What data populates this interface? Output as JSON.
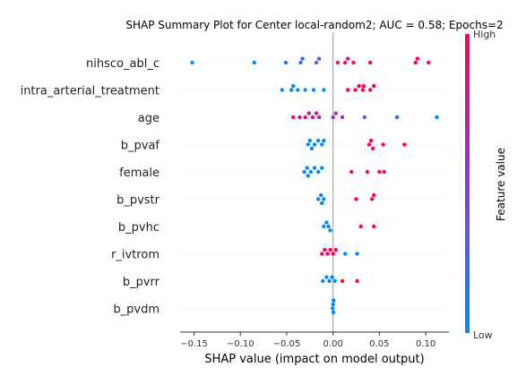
{
  "chart_data": {
    "type": "scatter",
    "title": "SHAP Summary Plot for Center local-random2; AUC = 0.58; Epochs=2",
    "xlabel": "SHAP value (impact on model output)",
    "xlim": [
      -0.165,
      0.125
    ],
    "x_ticks": [
      -0.15,
      -0.1,
      -0.05,
      0.0,
      0.05,
      0.1
    ],
    "x_tick_labels": [
      "−0.15",
      "−0.10",
      "−0.05",
      "0.00",
      "0.05",
      "0.10"
    ],
    "colorbar": {
      "label": "Feature value",
      "high_label": "High",
      "low_label": "Low",
      "high_color": "#ff0052",
      "low_color": "#008bfb"
    },
    "features": [
      {
        "name": "nihsco_abl_c",
        "points": [
          {
            "x": -0.152,
            "v": 0.0
          },
          {
            "x": -0.085,
            "v": 0.0
          },
          {
            "x": -0.051,
            "v": 0.05
          },
          {
            "x": -0.035,
            "v": 0.15
          },
          {
            "x": -0.033,
            "v": 0.2
          },
          {
            "x": -0.018,
            "v": 0.35
          },
          {
            "x": -0.015,
            "v": 0.4
          },
          {
            "x": 0.005,
            "v": 0.85
          },
          {
            "x": 0.013,
            "v": 0.9
          },
          {
            "x": 0.016,
            "v": 0.85
          },
          {
            "x": 0.022,
            "v": 0.95
          },
          {
            "x": 0.04,
            "v": 0.95
          },
          {
            "x": 0.089,
            "v": 1.0
          },
          {
            "x": 0.091,
            "v": 1.0
          },
          {
            "x": 0.103,
            "v": 1.0
          }
        ]
      },
      {
        "name": "intra_arterial_treatment",
        "points": [
          {
            "x": -0.055,
            "v": 0.0
          },
          {
            "x": -0.045,
            "v": 0.0
          },
          {
            "x": -0.043,
            "v": 0.0
          },
          {
            "x": -0.038,
            "v": 0.0
          },
          {
            "x": -0.03,
            "v": 0.0
          },
          {
            "x": -0.021,
            "v": 0.0
          },
          {
            "x": -0.01,
            "v": 0.0
          },
          {
            "x": 0.016,
            "v": 1.0
          },
          {
            "x": 0.024,
            "v": 1.0
          },
          {
            "x": 0.028,
            "v": 1.0
          },
          {
            "x": 0.032,
            "v": 1.0
          },
          {
            "x": 0.033,
            "v": 1.0
          },
          {
            "x": 0.04,
            "v": 1.0
          },
          {
            "x": 0.044,
            "v": 1.0
          }
        ]
      },
      {
        "name": "age",
        "points": [
          {
            "x": -0.043,
            "v": 0.9
          },
          {
            "x": -0.036,
            "v": 0.85
          },
          {
            "x": -0.03,
            "v": 0.9
          },
          {
            "x": -0.026,
            "v": 0.8
          },
          {
            "x": -0.022,
            "v": 0.85
          },
          {
            "x": -0.018,
            "v": 0.75
          },
          {
            "x": -0.015,
            "v": 0.8
          },
          {
            "x": 0.0,
            "v": 0.6
          },
          {
            "x": 0.003,
            "v": 0.55
          },
          {
            "x": 0.01,
            "v": 0.5
          },
          {
            "x": 0.034,
            "v": 0.3
          },
          {
            "x": 0.069,
            "v": 0.1
          },
          {
            "x": 0.112,
            "v": 0.0
          }
        ]
      },
      {
        "name": "b_pvaf",
        "points": [
          {
            "x": -0.027,
            "v": 0.0
          },
          {
            "x": -0.025,
            "v": 0.0
          },
          {
            "x": -0.02,
            "v": 0.0
          },
          {
            "x": -0.016,
            "v": 0.05
          },
          {
            "x": -0.012,
            "v": 0.05
          },
          {
            "x": -0.01,
            "v": 0.0
          },
          {
            "x": -0.023,
            "v": 0.0
          },
          {
            "x": 0.039,
            "v": 1.0
          },
          {
            "x": 0.041,
            "v": 1.0
          },
          {
            "x": 0.043,
            "v": 1.0
          },
          {
            "x": 0.054,
            "v": 1.0
          },
          {
            "x": 0.077,
            "v": 1.0
          }
        ]
      },
      {
        "name": "female",
        "points": [
          {
            "x": -0.031,
            "v": 0.0
          },
          {
            "x": -0.027,
            "v": 0.0
          },
          {
            "x": -0.024,
            "v": 0.0
          },
          {
            "x": -0.02,
            "v": 0.0
          },
          {
            "x": -0.016,
            "v": 0.0
          },
          {
            "x": -0.012,
            "v": 0.0
          },
          {
            "x": -0.028,
            "v": 0.0
          },
          {
            "x": 0.02,
            "v": 1.0
          },
          {
            "x": 0.037,
            "v": 1.0
          },
          {
            "x": 0.05,
            "v": 1.0
          },
          {
            "x": 0.055,
            "v": 1.0
          }
        ]
      },
      {
        "name": "b_pvstr",
        "points": [
          {
            "x": -0.016,
            "v": 0.0
          },
          {
            "x": -0.012,
            "v": 0.0
          },
          {
            "x": -0.01,
            "v": 0.0
          },
          {
            "x": -0.013,
            "v": 0.0
          },
          {
            "x": 0.025,
            "v": 1.0
          },
          {
            "x": 0.042,
            "v": 1.0
          },
          {
            "x": 0.044,
            "v": 1.0
          }
        ]
      },
      {
        "name": "b_pvhc",
        "points": [
          {
            "x": -0.01,
            "v": 0.0
          },
          {
            "x": -0.007,
            "v": 0.0
          },
          {
            "x": -0.005,
            "v": 0.0
          },
          {
            "x": -0.003,
            "v": 0.0
          },
          {
            "x": 0.03,
            "v": 1.0
          },
          {
            "x": 0.044,
            "v": 1.0
          }
        ]
      },
      {
        "name": "r_ivtrom",
        "points": [
          {
            "x": -0.012,
            "v": 1.0
          },
          {
            "x": -0.009,
            "v": 1.0
          },
          {
            "x": -0.006,
            "v": 1.0
          },
          {
            "x": -0.003,
            "v": 1.0
          },
          {
            "x": 0.0,
            "v": 1.0
          },
          {
            "x": 0.003,
            "v": 1.0
          },
          {
            "x": 0.013,
            "v": 0.0
          },
          {
            "x": 0.026,
            "v": 0.0
          }
        ]
      },
      {
        "name": "b_pvrr",
        "points": [
          {
            "x": -0.011,
            "v": 0.0
          },
          {
            "x": -0.007,
            "v": 0.0
          },
          {
            "x": -0.004,
            "v": 0.0
          },
          {
            "x": -0.001,
            "v": 0.0
          },
          {
            "x": 0.002,
            "v": 0.0
          },
          {
            "x": 0.01,
            "v": 1.0
          },
          {
            "x": 0.026,
            "v": 1.0
          }
        ]
      },
      {
        "name": "b_pvdm",
        "points": [
          {
            "x": -0.0005,
            "v": 0.0
          },
          {
            "x": 0.0,
            "v": 0.0
          },
          {
            "x": 0.0003,
            "v": 0.0
          },
          {
            "x": 0.0005,
            "v": 0.0
          }
        ]
      }
    ]
  }
}
